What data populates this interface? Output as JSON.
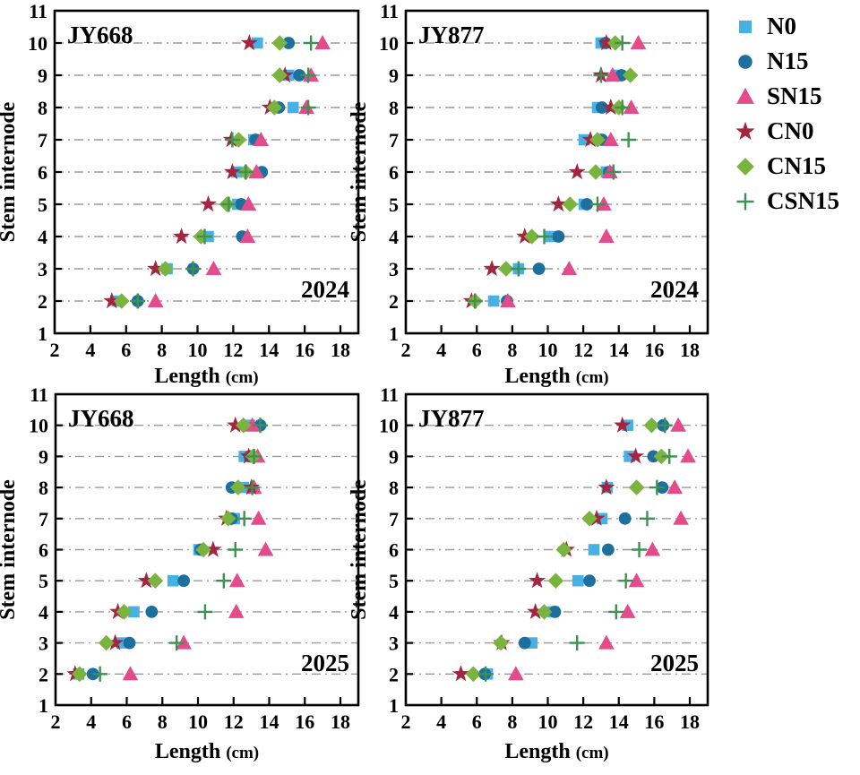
{
  "figure": {
    "xlabel_text": "Length",
    "xlabel_unit": "(cm)",
    "ylabel": "Stem internode",
    "colors": {
      "grid": "#9b9b9b",
      "axis": "#000000",
      "background": "#ffffff"
    }
  },
  "legend": {
    "items": [
      {
        "label": "N0",
        "marker": "square",
        "color": "#47b1e3"
      },
      {
        "label": "N15",
        "marker": "circle",
        "color": "#1d6f9e"
      },
      {
        "label": "SN15",
        "marker": "triangle",
        "color": "#e34b8b"
      },
      {
        "label": "CN0",
        "marker": "star",
        "color": "#a32540"
      },
      {
        "label": "CN15",
        "marker": "diamond",
        "color": "#7ab43f"
      },
      {
        "label": "CSN15",
        "marker": "plus",
        "color": "#3f9153"
      }
    ]
  },
  "chart_data": [
    {
      "type": "scatter",
      "title": "JY668",
      "year_label": "2024",
      "xlabel": "Length (cm)",
      "ylabel": "Stem internode",
      "xlim": [
        2,
        19
      ],
      "ylim": [
        1,
        11
      ],
      "xticks": [
        2,
        4,
        6,
        8,
        10,
        12,
        14,
        16,
        18
      ],
      "yticks": [
        1,
        2,
        3,
        4,
        5,
        6,
        7,
        8,
        9,
        10,
        11
      ],
      "internodes": [
        2,
        3,
        4,
        5,
        6,
        7,
        8,
        9,
        10
      ],
      "series": [
        {
          "name": "N0",
          "values": [
            5.5,
            8.3,
            10.6,
            12.25,
            12.2,
            13.15,
            15.35,
            15.1,
            13.35
          ]
        },
        {
          "name": "N15",
          "values": [
            6.65,
            9.75,
            12.5,
            12.45,
            13.6,
            13.25,
            14.55,
            15.7,
            15.1
          ]
        },
        {
          "name": "SN15",
          "values": [
            7.65,
            10.9,
            12.8,
            12.85,
            13.3,
            13.55,
            16.1,
            16.35,
            17.0
          ]
        },
        {
          "name": "CN0",
          "values": [
            5.2,
            7.65,
            9.1,
            10.6,
            11.95,
            11.9,
            14.05,
            14.9,
            12.9
          ]
        },
        {
          "name": "CN15",
          "values": [
            5.75,
            8.2,
            10.2,
            11.65,
            12.7,
            12.3,
            14.3,
            14.6,
            14.6
          ]
        },
        {
          "name": "CSN15",
          "values": [
            6.65,
            9.75,
            10.4,
            11.75,
            12.7,
            11.95,
            16.2,
            16.2,
            16.35
          ]
        }
      ]
    },
    {
      "type": "scatter",
      "title": "JY877",
      "year_label": "2024",
      "xlabel": "Length (cm)",
      "ylabel": "Stem internode",
      "xlim": [
        2,
        19
      ],
      "ylim": [
        1,
        11
      ],
      "xticks": [
        2,
        4,
        6,
        8,
        10,
        12,
        14,
        16,
        18
      ],
      "yticks": [
        1,
        2,
        3,
        4,
        5,
        6,
        7,
        8,
        9,
        10,
        11
      ],
      "internodes": [
        2,
        3,
        4,
        5,
        6,
        7,
        8,
        9,
        10
      ],
      "series": [
        {
          "name": "N0",
          "values": [
            6.95,
            8.35,
            10.15,
            12.05,
            13.3,
            12.05,
            12.8,
            13.85,
            13.0
          ]
        },
        {
          "name": "N15",
          "values": [
            7.7,
            9.5,
            10.6,
            12.2,
            13.45,
            13.05,
            13.05,
            14.15,
            13.25
          ]
        },
        {
          "name": "SN15",
          "values": [
            7.75,
            11.2,
            13.3,
            13.15,
            13.5,
            13.55,
            14.7,
            13.65,
            15.1
          ]
        },
        {
          "name": "CN0",
          "values": [
            5.7,
            6.85,
            8.7,
            10.6,
            11.65,
            12.4,
            13.55,
            13.0,
            13.3
          ]
        },
        {
          "name": "CN15",
          "values": [
            5.9,
            7.65,
            9.1,
            11.25,
            12.7,
            12.8,
            14.0,
            14.65,
            13.8
          ]
        },
        {
          "name": "CSN15",
          "values": [
            5.9,
            8.35,
            9.8,
            12.8,
            13.7,
            14.55,
            14.2,
            13.0,
            14.2
          ]
        }
      ]
    },
    {
      "type": "scatter",
      "title": "JY668",
      "year_label": "2025",
      "xlabel": "Length (cm)",
      "ylabel": "Stem internode",
      "xlim": [
        2,
        19
      ],
      "ylim": [
        1,
        11
      ],
      "xticks": [
        2,
        4,
        6,
        8,
        10,
        12,
        14,
        16,
        18
      ],
      "yticks": [
        1,
        2,
        3,
        4,
        5,
        6,
        7,
        8,
        9,
        10,
        11
      ],
      "internodes": [
        2,
        3,
        4,
        5,
        6,
        7,
        8,
        9,
        10
      ],
      "series": [
        {
          "name": "N0",
          "values": [
            3.3,
            5.75,
            6.4,
            8.6,
            10.05,
            12.05,
            12.55,
            12.6,
            12.9
          ]
        },
        {
          "name": "N15",
          "values": [
            4.1,
            6.15,
            7.4,
            9.2,
            10.15,
            11.9,
            11.9,
            12.9,
            13.5
          ]
        },
        {
          "name": "SN15",
          "values": [
            6.2,
            9.2,
            12.15,
            12.2,
            13.8,
            13.4,
            13.15,
            13.35,
            13.05
          ]
        },
        {
          "name": "CN0",
          "values": [
            3.1,
            5.35,
            5.5,
            7.1,
            10.85,
            11.6,
            13.0,
            12.85,
            12.1
          ]
        },
        {
          "name": "CN15",
          "values": [
            3.35,
            4.85,
            5.85,
            7.6,
            10.3,
            11.7,
            12.25,
            13.1,
            12.55
          ]
        },
        {
          "name": "CSN15",
          "values": [
            4.5,
            8.8,
            10.4,
            11.45,
            12.1,
            12.6,
            13.05,
            13.15,
            13.5
          ]
        }
      ]
    },
    {
      "type": "scatter",
      "title": "JY877",
      "year_label": "2025",
      "xlabel": "Length (cm)",
      "ylabel": "Stem internode",
      "xlim": [
        2,
        19
      ],
      "ylim": [
        1,
        11
      ],
      "xticks": [
        2,
        4,
        6,
        8,
        10,
        12,
        14,
        16,
        18
      ],
      "yticks": [
        1,
        2,
        3,
        4,
        5,
        6,
        7,
        8,
        9,
        10,
        11
      ],
      "internodes": [
        2,
        3,
        4,
        5,
        6,
        7,
        8,
        9,
        10
      ],
      "series": [
        {
          "name": "N0",
          "values": [
            6.6,
            9.1,
            10.3,
            11.7,
            12.6,
            13.05,
            13.35,
            14.6,
            14.5
          ]
        },
        {
          "name": "N15",
          "values": [
            6.45,
            8.7,
            10.4,
            12.35,
            13.4,
            14.35,
            16.45,
            15.95,
            16.5
          ]
        },
        {
          "name": "SN15",
          "values": [
            8.2,
            13.3,
            14.5,
            15.0,
            15.9,
            17.5,
            17.15,
            17.9,
            17.35
          ]
        },
        {
          "name": "CN0",
          "values": [
            5.1,
            7.4,
            9.3,
            9.4,
            11.05,
            12.75,
            13.3,
            14.95,
            14.2
          ]
        },
        {
          "name": "CN15",
          "values": [
            5.8,
            7.35,
            9.8,
            10.45,
            10.9,
            12.35,
            15.0,
            16.4,
            15.85
          ]
        },
        {
          "name": "CSN15",
          "values": [
            6.5,
            11.65,
            13.85,
            14.4,
            15.15,
            15.6,
            16.15,
            16.85,
            16.6
          ]
        }
      ]
    }
  ]
}
